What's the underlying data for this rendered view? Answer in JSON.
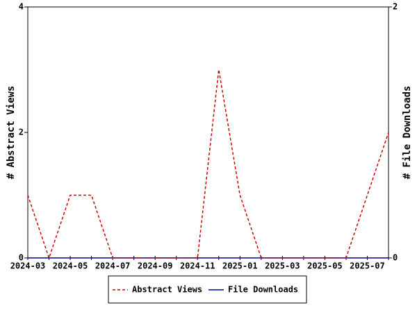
{
  "chart_data": {
    "type": "line",
    "categories": [
      "2024-03",
      null,
      "2024-05",
      null,
      "2024-07",
      null,
      "2024-09",
      null,
      "2024-11",
      null,
      "2025-01",
      null,
      "2025-03",
      null,
      "2025-05",
      null,
      "2025-07",
      null
    ],
    "series": [
      {
        "name": "Abstract Views",
        "color": "#cc0000",
        "dashed": true,
        "values": [
          1,
          0,
          1,
          1,
          0,
          0,
          0,
          0,
          0,
          3,
          1,
          0,
          0,
          0,
          0,
          0,
          1,
          2
        ]
      },
      {
        "name": "File Downloads",
        "color": "#000099",
        "axis": "y2",
        "values": [
          0,
          0,
          0,
          0,
          0,
          0,
          0,
          0,
          0,
          0,
          0,
          0,
          0,
          0,
          0,
          0,
          0,
          0
        ]
      }
    ],
    "ylabel": "# Abstract Views",
    "y2label": "# File Downloads",
    "ylim": [
      0,
      4
    ],
    "yticks": [
      0,
      2,
      4
    ],
    "y2lim": [
      0,
      2
    ],
    "y2ticks": [
      0,
      2
    ],
    "legend": "bottom"
  }
}
